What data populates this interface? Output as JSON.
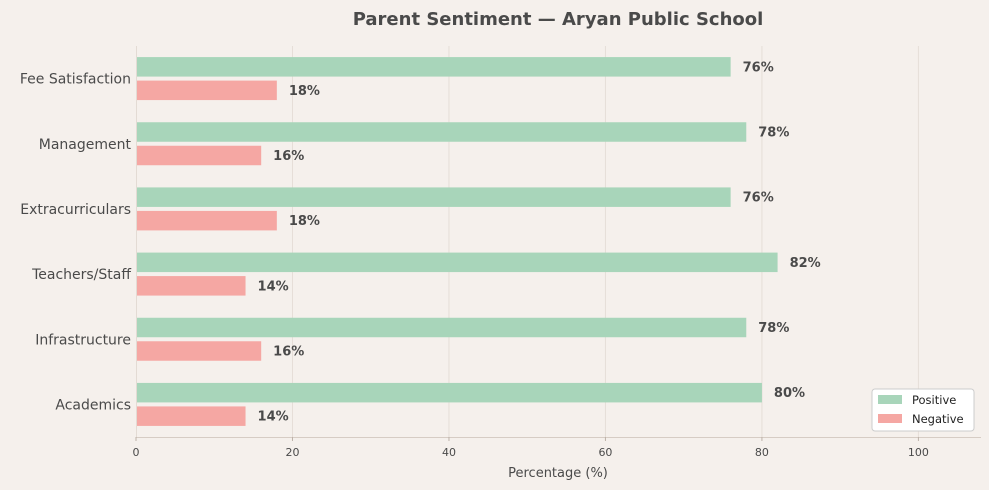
{
  "chart_data": {
    "type": "bar",
    "orientation": "horizontal",
    "title": "Parent Sentiment — Aryan Public School",
    "xlabel": "Percentage (%)",
    "ylabel": "",
    "categories": [
      "Academics",
      "Infrastructure",
      "Teachers/Staff",
      "Extracurriculars",
      "Management",
      "Fee Satisfaction"
    ],
    "series": [
      {
        "name": "Positive",
        "color": "#a8d5ba",
        "values": [
          80,
          78,
          82,
          76,
          78,
          76
        ]
      },
      {
        "name": "Negative",
        "color": "#f5a7a3",
        "values": [
          14,
          16,
          14,
          18,
          16,
          18
        ]
      }
    ],
    "data_label_suffix": "%",
    "xlim": [
      0,
      108
    ],
    "xticks": [
      0,
      20,
      40,
      60,
      80,
      100
    ],
    "grid": "vertical",
    "legend": "bottom-right"
  }
}
